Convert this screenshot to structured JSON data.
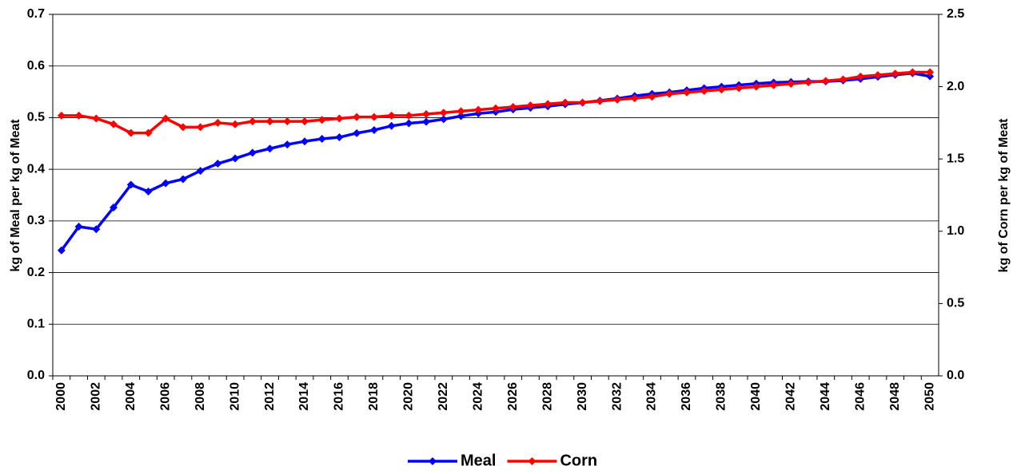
{
  "chart_data": {
    "type": "line",
    "y_label": "kg of Meal per kg of Meat",
    "y2_label": "kg of Corn per kg of Meat",
    "categories": [
      "2000",
      null,
      "2002",
      null,
      "2004",
      null,
      "2006",
      null,
      "2008",
      null,
      "2010",
      null,
      "2012",
      null,
      "2014",
      null,
      "2016",
      null,
      "2018",
      null,
      "2020",
      null,
      "2022",
      null,
      "2024",
      null,
      "2026",
      null,
      "2028",
      null,
      "2030",
      null,
      "2032",
      null,
      "2034",
      null,
      "2036",
      null,
      "2038",
      null,
      "2040",
      null,
      "2042",
      null,
      "2044",
      null,
      "2046",
      null,
      "2048",
      null,
      "2050"
    ],
    "series": [
      {
        "name": "Meal",
        "color": "#0000ff",
        "axis": "y",
        "values": [
          0.243,
          0.289,
          0.284,
          0.326,
          0.37,
          0.357,
          0.373,
          0.381,
          0.397,
          0.411,
          0.421,
          0.432,
          0.44,
          0.448,
          0.454,
          0.459,
          0.462,
          0.47,
          0.476,
          0.484,
          0.489,
          0.492,
          0.497,
          0.503,
          0.508,
          0.511,
          0.516,
          0.519,
          0.522,
          0.526,
          0.529,
          0.533,
          0.537,
          0.542,
          0.546,
          0.549,
          0.553,
          0.557,
          0.56,
          0.563,
          0.566,
          0.568,
          0.569,
          0.57,
          0.57,
          0.572,
          0.575,
          0.579,
          0.583,
          0.586,
          0.58
        ]
      },
      {
        "name": "Corn",
        "color": "#ff0000",
        "axis": "y2",
        "values": [
          1.8,
          1.8,
          1.78,
          1.74,
          1.68,
          1.68,
          1.78,
          1.72,
          1.72,
          1.75,
          1.74,
          1.76,
          1.76,
          1.76,
          1.76,
          1.77,
          1.78,
          1.79,
          1.79,
          1.8,
          1.8,
          1.81,
          1.82,
          1.83,
          1.84,
          1.85,
          1.86,
          1.87,
          1.88,
          1.89,
          1.89,
          1.9,
          1.91,
          1.92,
          1.93,
          1.95,
          1.96,
          1.97,
          1.98,
          1.99,
          2.0,
          2.01,
          2.02,
          2.03,
          2.04,
          2.05,
          2.07,
          2.08,
          2.09,
          2.1,
          2.1
        ]
      }
    ],
    "ylim": [
      0,
      0.7
    ],
    "yticks": [
      {
        "value": 0,
        "label": "0.0"
      },
      0.1,
      0.2,
      0.3,
      0.4,
      0.5,
      0.6,
      0.7
    ],
    "y2lim": [
      0,
      2.5
    ],
    "y2ticks": [
      {
        "value": 0,
        "label": "0.0"
      },
      0.5,
      {
        "value": 1,
        "label": "1.0"
      },
      1.5,
      {
        "value": 2,
        "label": "2.0"
      },
      2.5
    ],
    "grid": true,
    "legend": "bottom"
  }
}
